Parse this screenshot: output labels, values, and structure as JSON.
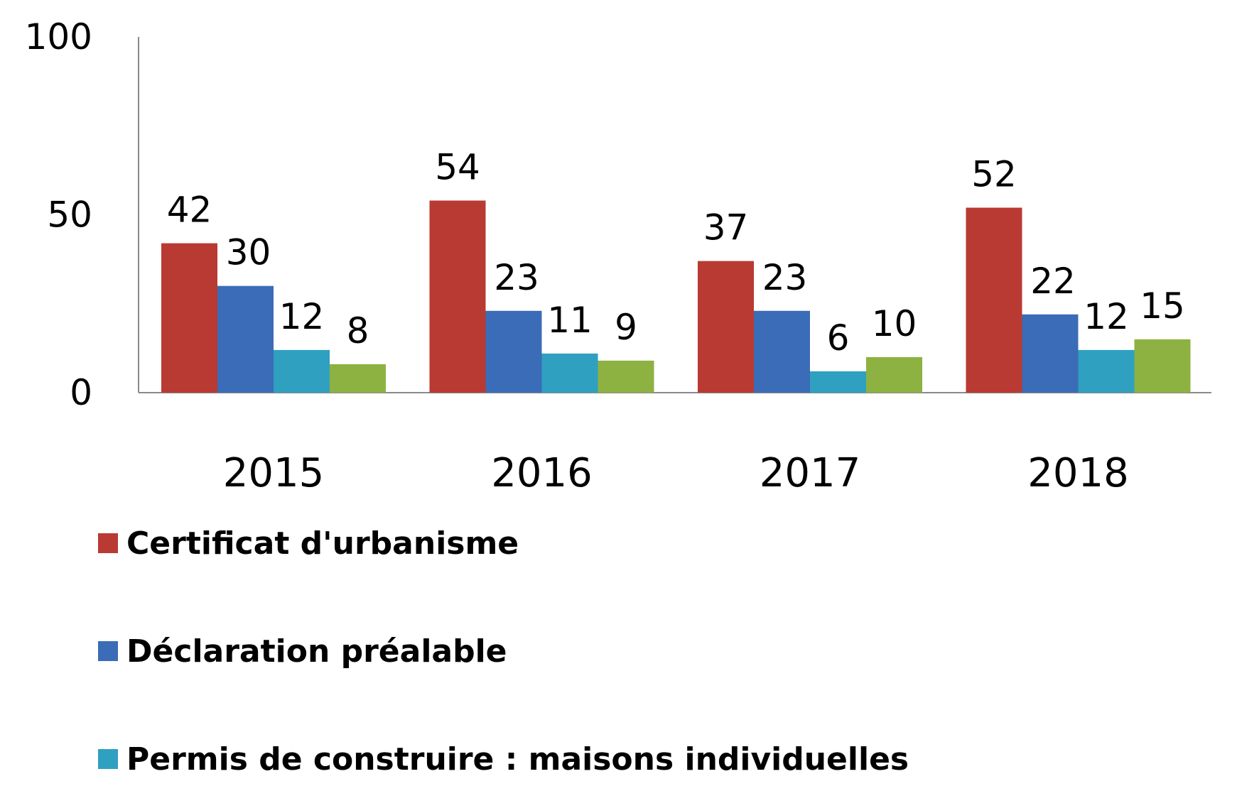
{
  "chart_data": {
    "type": "bar",
    "title": "",
    "xlabel": "",
    "ylabel": "",
    "categories": [
      "2015",
      "2016",
      "2017",
      "2018"
    ],
    "ylim": [
      0,
      100
    ],
    "yticks": [
      0,
      50,
      100
    ],
    "grid": false,
    "legend_position": "bottom-left",
    "series": [
      {
        "name": "Certificat d'urbanisme",
        "values": [
          42,
          54,
          37,
          52
        ],
        "color": "#b93a32"
      },
      {
        "name": "Déclaration préalable",
        "values": [
          30,
          23,
          23,
          22
        ],
        "color": "#3b6cb7"
      },
      {
        "name": "Permis de construire : maisons individuelles",
        "values": [
          12,
          11,
          6,
          12
        ],
        "color": "#2fa0c0"
      },
      {
        "name": "",
        "values": [
          8,
          9,
          10,
          15
        ],
        "color": "#8db242"
      }
    ]
  }
}
